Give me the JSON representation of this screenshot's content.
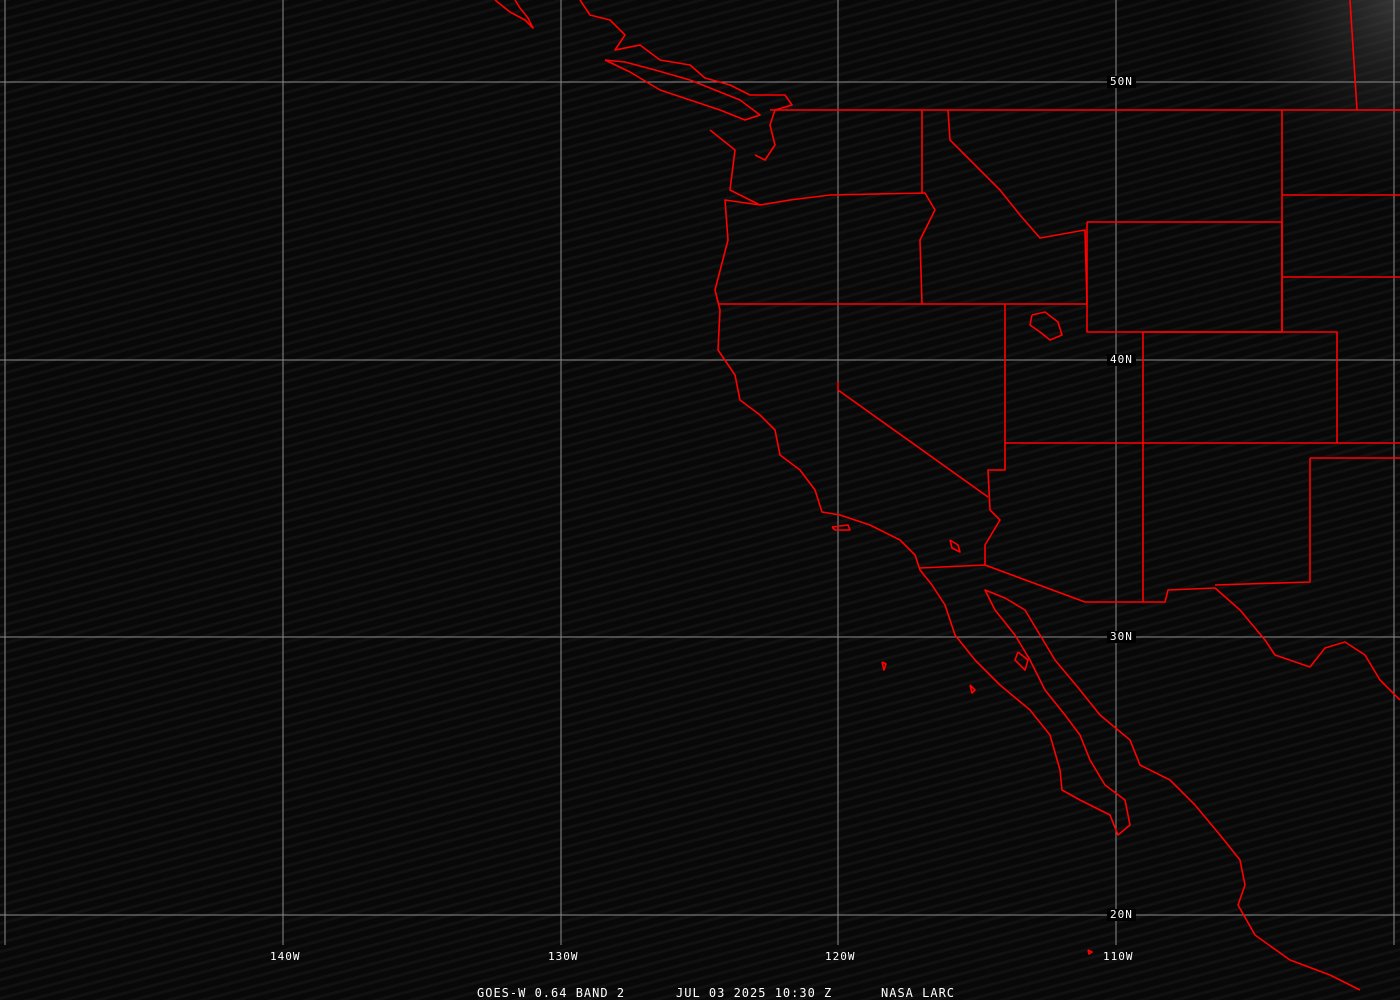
{
  "map": {
    "background_color": "#0a0a0a",
    "grid_color": "#8c8c8c",
    "boundary_color": "#ff0000",
    "latitude_labels": [
      "50N",
      "40N",
      "30N",
      "20N"
    ],
    "longitude_labels": [
      "140W",
      "130W",
      "120W",
      "110W"
    ]
  },
  "caption": {
    "satellite": "GOES-W 0.64 BAND 2",
    "datetime": "JUL 03 2025 10:30 Z",
    "source": "NASA LARC"
  }
}
